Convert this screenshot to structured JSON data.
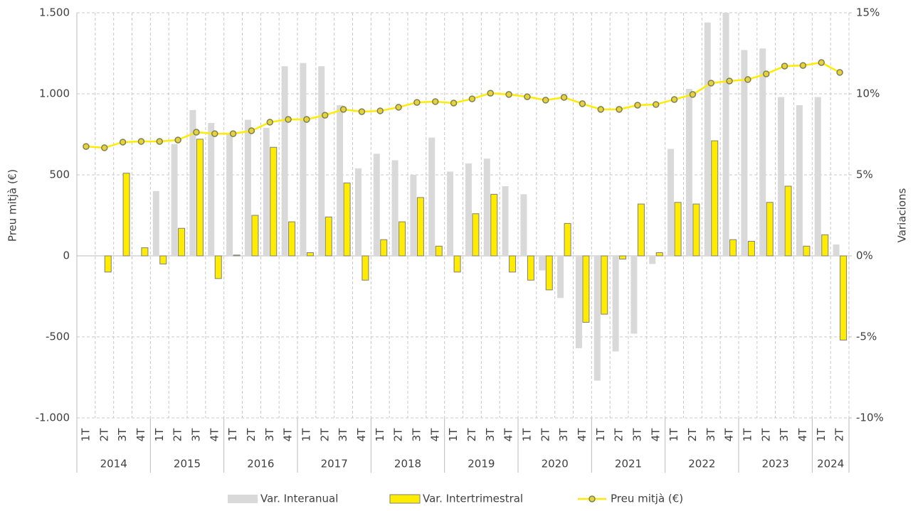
{
  "chart_data": {
    "type": "combo",
    "categories": [
      "1T",
      "2T",
      "3T",
      "4T",
      "1T",
      "2T",
      "3T",
      "4T",
      "1T",
      "2T",
      "3T",
      "4T",
      "1T",
      "2T",
      "3T",
      "4T",
      "1T",
      "2T",
      "3T",
      "4T",
      "1T",
      "2T",
      "3T",
      "4T",
      "1T",
      "2T",
      "3T",
      "4T",
      "1T",
      "2T",
      "3T",
      "4T",
      "1T",
      "2T",
      "3T",
      "4T",
      "1T",
      "2T",
      "3T",
      "4T",
      "1T",
      "2T"
    ],
    "groups": [
      "2014",
      "2015",
      "2016",
      "2017",
      "2018",
      "2019",
      "2020",
      "2021",
      "2022",
      "2023",
      "2024"
    ],
    "y_label": "Preu mitjà (€)",
    "y2_label": "Variacions",
    "ylim": [
      -1000,
      1500
    ],
    "yticks": [
      {
        "value": -1000,
        "label": "-1.000"
      },
      -500,
      0,
      500,
      {
        "value": 1000,
        "label": "1.000"
      },
      {
        "value": 1500,
        "label": "1.500"
      }
    ],
    "y2lim": [
      -10,
      15
    ],
    "y2ticks": [
      {
        "value": -10,
        "label": "-10%"
      },
      {
        "value": -5,
        "label": "-5%"
      },
      {
        "value": 0,
        "label": "0%"
      },
      {
        "value": 5,
        "label": "5%"
      },
      {
        "value": 10,
        "label": "10%"
      },
      {
        "value": 15,
        "label": "15%"
      }
    ],
    "grid": true,
    "legend": "bottom",
    "series": [
      {
        "name": "Var. Interanual",
        "type": "bar",
        "axis": "y2",
        "color": "#d9d9d9",
        "values": [
          null,
          null,
          null,
          null,
          4.0,
          6.9,
          9.0,
          8.2,
          7.5,
          8.4,
          7.9,
          11.7,
          11.9,
          11.7,
          9.3,
          5.4,
          6.3,
          5.9,
          5.0,
          7.3,
          5.2,
          5.7,
          6.0,
          4.3,
          3.8,
          -0.9,
          -2.6,
          -5.7,
          -7.7,
          -5.9,
          -4.8,
          -0.5,
          6.6,
          10.3,
          14.4,
          15.0,
          12.7,
          12.8,
          9.8,
          9.3,
          9.8,
          0.7
        ]
      },
      {
        "name": "Var. Intertrimestral",
        "type": "bar",
        "axis": "y2",
        "color": "#ffec00",
        "values": [
          null,
          -1.0,
          5.1,
          0.5,
          -0.5,
          1.7,
          7.2,
          -1.4,
          0.05,
          2.5,
          6.7,
          2.1,
          0.2,
          2.4,
          4.5,
          -1.5,
          1.0,
          2.1,
          3.6,
          0.6,
          -1.0,
          2.6,
          3.8,
          -1.0,
          -1.5,
          -2.1,
          2.0,
          -4.1,
          -3.6,
          -0.2,
          3.2,
          0.2,
          3.3,
          3.2,
          7.1,
          1.0,
          0.9,
          3.3,
          4.3,
          0.6,
          1.3,
          -5.2
        ]
      },
      {
        "name": "Preu mitjà (€)",
        "type": "line",
        "color": "#ffec00",
        "values": [
          675,
          667,
          702,
          706,
          706,
          715,
          763,
          754,
          754,
          772,
          825,
          842,
          842,
          868,
          904,
          890,
          895,
          917,
          947,
          952,
          943,
          969,
          1004,
          996,
          982,
          961,
          978,
          939,
          904,
          904,
          930,
          934,
          965,
          996,
          1066,
          1079,
          1088,
          1123,
          1171,
          1175,
          1193,
          1132
        ]
      }
    ]
  }
}
